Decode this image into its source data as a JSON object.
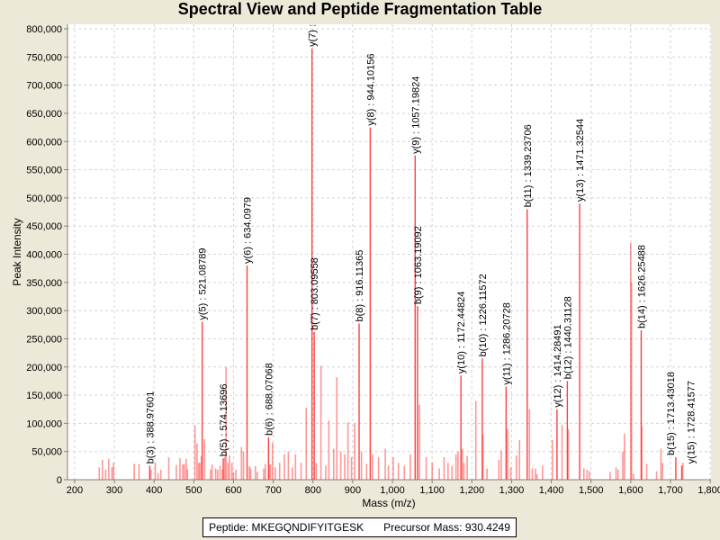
{
  "chart_data": {
    "type": "bar",
    "title": "Spectral View and Peptide Fragmentation Table",
    "xlabel": "Mass (m/z)",
    "ylabel": "Peak Intensity",
    "xlim": [
      182,
      1802
    ],
    "ylim": [
      0,
      808000
    ],
    "xticks": [
      200,
      300,
      400,
      500,
      600,
      700,
      800,
      900,
      1000,
      1100,
      1200,
      1300,
      1400,
      1500,
      1600,
      1700,
      1800
    ],
    "xtick_labels": [
      "200",
      "300",
      "400",
      "500",
      "600",
      "700",
      "800",
      "900",
      "1,000",
      "1,100",
      "1,200",
      "1,300",
      "1,400",
      "1,500",
      "1,600",
      "1,700",
      "1,800"
    ],
    "yticks": [
      0,
      50000,
      100000,
      150000,
      200000,
      250000,
      300000,
      350000,
      400000,
      450000,
      500000,
      550000,
      600000,
      650000,
      700000,
      750000,
      800000
    ],
    "ytick_labels": [
      "0",
      "50,000",
      "100,000",
      "150,000",
      "200,000",
      "250,000",
      "300,000",
      "350,000",
      "400,000",
      "450,000",
      "500,000",
      "550,000",
      "600,000",
      "650,000",
      "700,000",
      "750,000",
      "800,000"
    ],
    "grid": true,
    "color": "#ff4040",
    "annotated_peaks": [
      {
        "mz": 388.97601,
        "intensity": 25000,
        "label": "b(3) : 388.97601"
      },
      {
        "mz": 521.08789,
        "intensity": 280000,
        "label": "y(5) : 521.08789"
      },
      {
        "mz": 574.13696,
        "intensity": 38000,
        "label": "b(5) : 574.13696"
      },
      {
        "mz": 634.0979,
        "intensity": 380000,
        "label": "y(6) : 634.0979"
      },
      {
        "mz": 688.07068,
        "intensity": 75000,
        "label": "b(6) : 688.07068"
      },
      {
        "mz": 797.5,
        "intensity": 765000,
        "label": "y(7) : "
      },
      {
        "mz": 803.09558,
        "intensity": 262000,
        "label": "b(7) : 803.09558"
      },
      {
        "mz": 916.11365,
        "intensity": 277000,
        "label": "b(8) : 916.11365"
      },
      {
        "mz": 944.10156,
        "intensity": 625000,
        "label": "y(8) : 944.10156"
      },
      {
        "mz": 1057.19824,
        "intensity": 575000,
        "label": "y(9) : 1057.19824"
      },
      {
        "mz": 1063.19092,
        "intensity": 308000,
        "label": "b(9) : 1063.19092"
      },
      {
        "mz": 1172.44824,
        "intensity": 185000,
        "label": "y(10) : 1172.44824"
      },
      {
        "mz": 1226.11572,
        "intensity": 215000,
        "label": "b(10) : 1226.11572"
      },
      {
        "mz": 1286.20728,
        "intensity": 165000,
        "label": "y(11) : 1286.20728"
      },
      {
        "mz": 1339.23706,
        "intensity": 480000,
        "label": "b(11) : 1339.23706"
      },
      {
        "mz": 1414.28491,
        "intensity": 125000,
        "label": "y(12) : 1414.28491"
      },
      {
        "mz": 1440.31128,
        "intensity": 175000,
        "label": "b(12) : 1440.31128"
      },
      {
        "mz": 1471.32544,
        "intensity": 490000,
        "label": "y(13) : 1471.32544"
      },
      {
        "mz": 1626.25488,
        "intensity": 265000,
        "label": "b(14) : 1626.25488"
      },
      {
        "mz": 1713.43018,
        "intensity": 40000,
        "label": "b(15) : 1713.43018"
      },
      {
        "mz": 1728.41577,
        "intensity": 25000,
        "label": "y(15) : 1728.41577"
      }
    ],
    "peaks": [
      [
        262,
        22000
      ],
      [
        270,
        35000
      ],
      [
        278,
        18000
      ],
      [
        286,
        37000
      ],
      [
        294,
        22000
      ],
      [
        298,
        30000
      ],
      [
        350,
        28000
      ],
      [
        362,
        28000
      ],
      [
        392,
        18000
      ],
      [
        403,
        30000
      ],
      [
        410,
        12000
      ],
      [
        417,
        18000
      ],
      [
        437,
        40000
      ],
      [
        456,
        26000
      ],
      [
        465,
        38000
      ],
      [
        472,
        27000
      ],
      [
        476,
        28000
      ],
      [
        481,
        37000
      ],
      [
        484,
        18000
      ],
      [
        503,
        96000
      ],
      [
        508,
        64000
      ],
      [
        512,
        30000
      ],
      [
        515,
        30000
      ],
      [
        519,
        42000
      ],
      [
        527,
        72000
      ],
      [
        542,
        18000
      ],
      [
        546,
        27000
      ],
      [
        555,
        20000
      ],
      [
        560,
        18000
      ],
      [
        566,
        25000
      ],
      [
        572,
        18000
      ],
      [
        578,
        40000
      ],
      [
        581,
        200000
      ],
      [
        586,
        30000
      ],
      [
        590,
        43000
      ],
      [
        596,
        30000
      ],
      [
        600,
        13000
      ],
      [
        606,
        18000
      ],
      [
        620,
        58000
      ],
      [
        625,
        50000
      ],
      [
        640,
        24000
      ],
      [
        643,
        20000
      ],
      [
        655,
        24000
      ],
      [
        660,
        14000
      ],
      [
        676,
        20000
      ],
      [
        680,
        28000
      ],
      [
        690,
        27000
      ],
      [
        693,
        27000
      ],
      [
        698,
        66000
      ],
      [
        705,
        22000
      ],
      [
        716,
        30000
      ],
      [
        728,
        45000
      ],
      [
        738,
        50000
      ],
      [
        748,
        22000
      ],
      [
        756,
        45000
      ],
      [
        770,
        30000
      ],
      [
        783,
        128000
      ],
      [
        808,
        30000
      ],
      [
        820,
        202000
      ],
      [
        832,
        25000
      ],
      [
        840,
        105000
      ],
      [
        852,
        55000
      ],
      [
        860,
        182000
      ],
      [
        870,
        50000
      ],
      [
        880,
        45000
      ],
      [
        888,
        102000
      ],
      [
        897,
        40000
      ],
      [
        905,
        100000
      ],
      [
        922,
        50000
      ],
      [
        935,
        28000
      ],
      [
        950,
        45000
      ],
      [
        965,
        40000
      ],
      [
        982,
        55000
      ],
      [
        990,
        25000
      ],
      [
        1002,
        40000
      ],
      [
        1015,
        30000
      ],
      [
        1030,
        25000
      ],
      [
        1045,
        45000
      ],
      [
        1068,
        133000
      ],
      [
        1085,
        40000
      ],
      [
        1100,
        30000
      ],
      [
        1118,
        20000
      ],
      [
        1130,
        40000
      ],
      [
        1140,
        30000
      ],
      [
        1150,
        25000
      ],
      [
        1160,
        45000
      ],
      [
        1165,
        50000
      ],
      [
        1176,
        55000
      ],
      [
        1180,
        30000
      ],
      [
        1188,
        42000
      ],
      [
        1210,
        140000
      ],
      [
        1228,
        80000
      ],
      [
        1238,
        20000
      ],
      [
        1268,
        35000
      ],
      [
        1274,
        52000
      ],
      [
        1290,
        90000
      ],
      [
        1298,
        22000
      ],
      [
        1312,
        43000
      ],
      [
        1320,
        70000
      ],
      [
        1345,
        125000
      ],
      [
        1352,
        20000
      ],
      [
        1360,
        20000
      ],
      [
        1364,
        10000
      ],
      [
        1378,
        25000
      ],
      [
        1403,
        70000
      ],
      [
        1427,
        97000
      ],
      [
        1443,
        90000
      ],
      [
        1482,
        20000
      ],
      [
        1490,
        18000
      ],
      [
        1496,
        15000
      ],
      [
        1548,
        14000
      ],
      [
        1563,
        22000
      ],
      [
        1568,
        18000
      ],
      [
        1580,
        50000
      ],
      [
        1584,
        82000
      ],
      [
        1600,
        420000
      ],
      [
        1602,
        350000
      ],
      [
        1607,
        10000
      ],
      [
        1628,
        95000
      ],
      [
        1640,
        28000
      ],
      [
        1665,
        15000
      ],
      [
        1676,
        55000
      ],
      [
        1680,
        30000
      ],
      [
        1731,
        30000
      ]
    ]
  },
  "legend": {
    "peptide": "Peptide: MKEGQNDIFYITGESK",
    "precursor": "Precursor Mass: 930.4249"
  }
}
